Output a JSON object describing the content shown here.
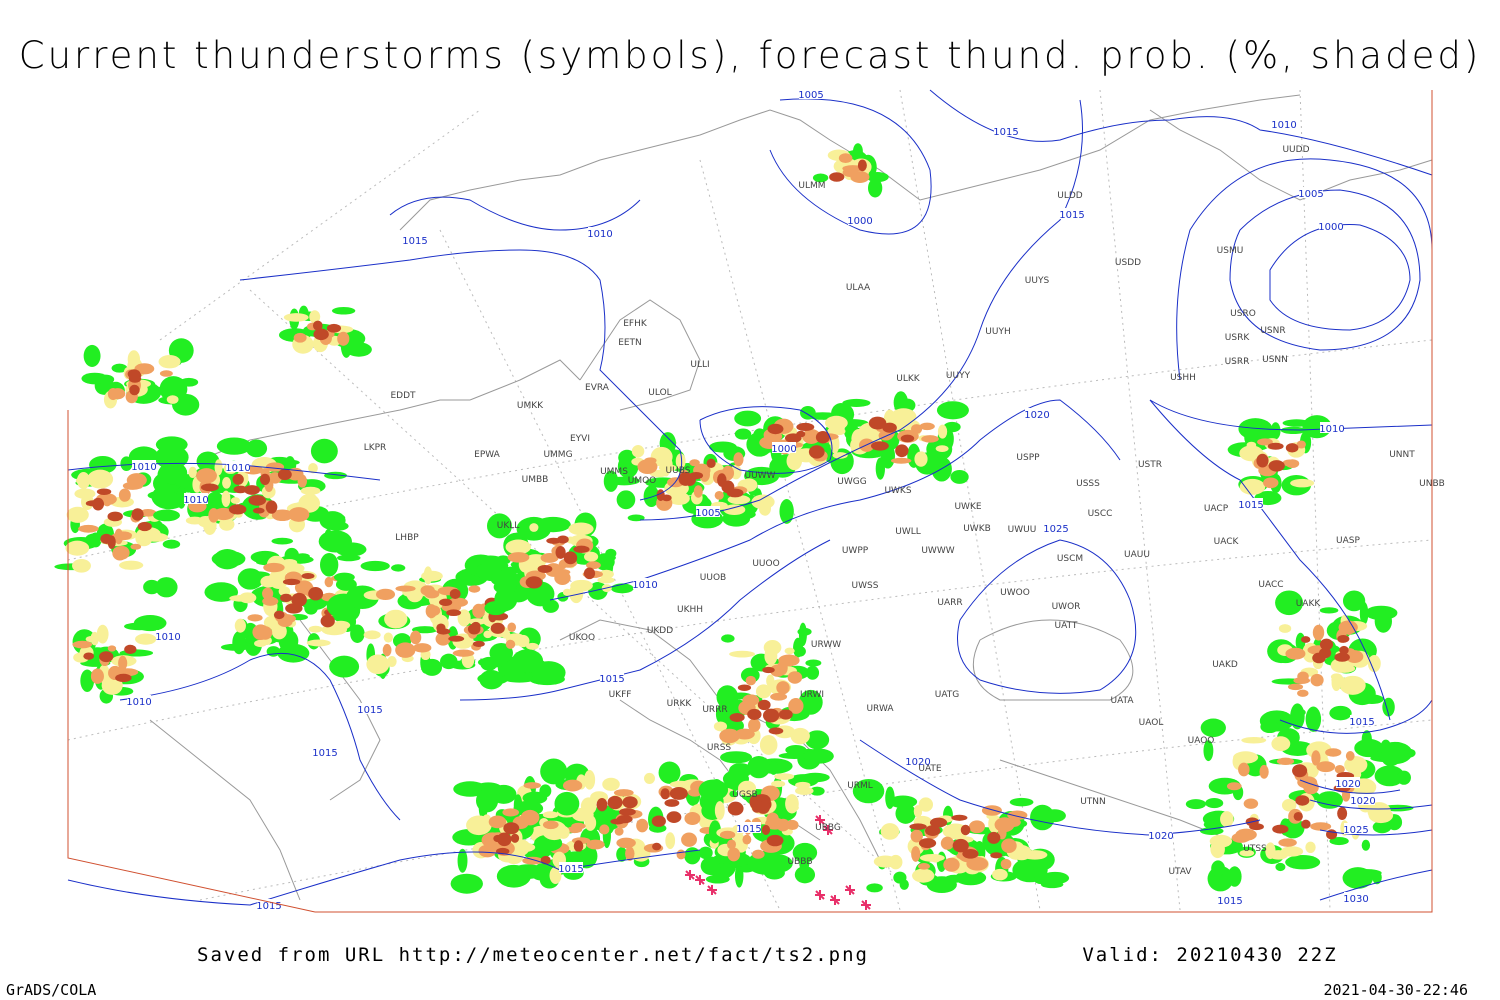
{
  "header": {
    "title": "Current thunderstorms (symbols), forecast thund. prob. (%, shaded)"
  },
  "map": {
    "isobar_labels": [
      "1005",
      "1015",
      "1010",
      "1005",
      "1000",
      "1010",
      "1000",
      "1015",
      "1015",
      "1010",
      "1015",
      "1020",
      "1025",
      "1000",
      "1005",
      "1010",
      "1010",
      "1010",
      "1010",
      "1010",
      "1010",
      "1015",
      "1015",
      "1015",
      "1015",
      "1015",
      "1015",
      "1020",
      "1020",
      "1015",
      "1020",
      "1020",
      "1025",
      "1030",
      "1015"
    ],
    "stations": [
      "ULAA",
      "EFHK",
      "EETN",
      "EVRA",
      "ULOL",
      "UMKK",
      "EDDT",
      "EPWA",
      "UMMG",
      "EYVI",
      "UMMS",
      "UMOO",
      "UUBS",
      "UMBB",
      "LKPR",
      "UKLL",
      "LHBP",
      "UUWW",
      "UWGG",
      "UWKS",
      "UWKE",
      "UWKB",
      "UWUU",
      "UWLL",
      "UWWW",
      "UWPP",
      "UWSS",
      "UUYY",
      "UUYH",
      "UUYS",
      "ULDD",
      "USDD",
      "ULKK",
      "USMU",
      "USRO",
      "USNR",
      "USRK",
      "USRR",
      "USNN",
      "USHH",
      "USPP",
      "USSS",
      "USTR",
      "USCC",
      "USCM",
      "UAUU",
      "UWOO",
      "UWOR",
      "UATT",
      "UARR",
      "UACK",
      "UACP",
      "UACC",
      "UAKK",
      "UASP",
      "UNNT",
      "UNBB",
      "UAKD",
      "UATG",
      "UATA",
      "UAOL",
      "UAOO",
      "UATE",
      "UTNN",
      "URWA",
      "URWI",
      "URWW",
      "UKOO",
      "UKDD",
      "UKFF",
      "UKHH",
      "URKK",
      "URRR",
      "URSS",
      "UGSB",
      "UBBB",
      "UBBG",
      "URML",
      "UTAV",
      "UTSS",
      "UUOO",
      "ULMM",
      "UUOB",
      "ULLI",
      "UUDD"
    ]
  },
  "footer": {
    "source": "Saved from URL http://meteocenter.net/fact/ts2.png",
    "valid": "Valid: 20210430 22Z",
    "software": "GrADS/COLA",
    "timestamp": "2021-04-30-22:46"
  }
}
